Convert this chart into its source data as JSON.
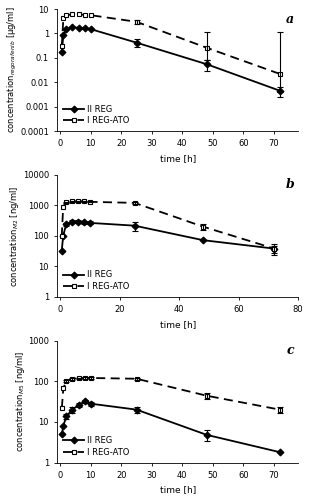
{
  "panel_a": {
    "label": "a",
    "ylabel": "concentration$_{regorafenib}$ [µg/ml]",
    "xlabel": "time [h]",
    "ylim": [
      0.0001,
      10
    ],
    "xlim": [
      -1,
      78
    ],
    "xticks": [
      0,
      10,
      20,
      30,
      40,
      50,
      60,
      70
    ],
    "yticks": [
      0.0001,
      0.001,
      0.01,
      0.1,
      1,
      10
    ],
    "ytick_labels": [
      "0.0001",
      "0.001",
      "0.01",
      "0.1",
      "1",
      "10"
    ],
    "series": {
      "II REG": {
        "x": [
          0.5,
          1,
          2,
          4,
          6,
          8,
          10,
          25,
          48,
          72
        ],
        "y": [
          0.18,
          0.85,
          1.5,
          1.8,
          1.7,
          1.6,
          1.5,
          0.42,
          0.055,
          0.0045
        ],
        "yerr_lo": [
          0,
          0,
          0,
          0,
          0,
          0,
          0,
          0.15,
          0.025,
          0.002
        ],
        "yerr_hi": [
          0,
          0,
          0,
          0,
          0,
          0,
          0,
          0.15,
          0.025,
          0.002
        ],
        "marker": "D",
        "is_dashed": false
      },
      "I REG-ATO": {
        "x": [
          0.5,
          1,
          2,
          4,
          6,
          8,
          10,
          25,
          48,
          72
        ],
        "y": [
          0.32,
          4.2,
          5.5,
          6.2,
          6.0,
          5.8,
          5.6,
          3.0,
          0.26,
          0.022
        ],
        "yerr_lo": [
          0,
          0,
          0,
          0,
          0,
          0,
          0,
          0.5,
          0.18,
          0.018
        ],
        "yerr_hi": [
          0,
          0,
          0,
          0,
          0,
          0,
          0,
          0.5,
          0.85,
          1.1
        ],
        "marker": "s",
        "is_dashed": true
      }
    }
  },
  "panel_b": {
    "label": "b",
    "ylabel": "concentration$_{M2}$ [ng/ml]",
    "xlabel": "time [h]",
    "ylim": [
      1,
      10000
    ],
    "xlim": [
      -1,
      78
    ],
    "xticks": [
      0,
      20,
      40,
      60,
      80
    ],
    "yticks": [
      1,
      10,
      100,
      1000,
      10000
    ],
    "ytick_labels": [
      "1",
      "10",
      "100",
      "1000",
      "10000"
    ],
    "series": {
      "II REG": {
        "x": [
          0.5,
          1,
          2,
          4,
          6,
          8,
          10,
          25,
          48,
          72
        ],
        "y": [
          32,
          100,
          240,
          290,
          290,
          275,
          265,
          215,
          72,
          38
        ],
        "yerr_lo": [
          0,
          0,
          30,
          30,
          30,
          30,
          30,
          70,
          0,
          10
        ],
        "yerr_hi": [
          0,
          0,
          30,
          30,
          30,
          30,
          30,
          70,
          0,
          10
        ],
        "marker": "D",
        "is_dashed": false
      },
      "I REG-ATO": {
        "x": [
          0.5,
          1,
          2,
          4,
          6,
          8,
          10,
          25,
          48,
          72
        ],
        "y": [
          95,
          900,
          1280,
          1350,
          1360,
          1350,
          1300,
          1200,
          200,
          38
        ],
        "yerr_lo": [
          0,
          0,
          50,
          50,
          50,
          50,
          50,
          100,
          50,
          15
        ],
        "yerr_hi": [
          0,
          0,
          50,
          50,
          50,
          50,
          50,
          100,
          50,
          15
        ],
        "marker": "s",
        "is_dashed": true
      }
    }
  },
  "panel_c": {
    "label": "c",
    "ylabel": "concentration$_{M5}$ [ng/ml]",
    "xlabel": "time [h]",
    "ylim": [
      1,
      1000
    ],
    "xlim": [
      -1,
      78
    ],
    "xticks": [
      0,
      10,
      20,
      30,
      40,
      50,
      60,
      70
    ],
    "yticks": [
      1,
      10,
      100,
      1000
    ],
    "ytick_labels": [
      "1",
      "10",
      "100",
      "1000"
    ],
    "series": {
      "II REG": {
        "x": [
          0.5,
          1,
          2,
          4,
          6,
          8,
          10,
          25,
          48,
          72
        ],
        "y": [
          5.0,
          8.0,
          14,
          20,
          26,
          32,
          28,
          20,
          4.8,
          1.8
        ],
        "yerr_lo": [
          0,
          0,
          2,
          3,
          3,
          3,
          3,
          3,
          1.5,
          0
        ],
        "yerr_hi": [
          0,
          0,
          2,
          3,
          3,
          3,
          3,
          3,
          1.5,
          0
        ],
        "marker": "D",
        "is_dashed": false
      },
      "I REG-ATO": {
        "x": [
          0.5,
          1,
          2,
          4,
          6,
          8,
          10,
          25,
          48,
          72
        ],
        "y": [
          22,
          68,
          100,
          115,
          118,
          120,
          120,
          115,
          44,
          20
        ],
        "yerr_lo": [
          0,
          0,
          5,
          5,
          5,
          5,
          5,
          5,
          7,
          3
        ],
        "yerr_hi": [
          0,
          0,
          5,
          5,
          5,
          5,
          5,
          5,
          7,
          3
        ],
        "marker": "s",
        "is_dashed": true
      }
    }
  },
  "line_color": "black",
  "error_color": "black",
  "lw": 1.3,
  "ms": 3.5,
  "legend_fontsize": 6,
  "tick_fontsize": 6,
  "label_fontsize": 6.5,
  "panel_label_fontsize": 9
}
